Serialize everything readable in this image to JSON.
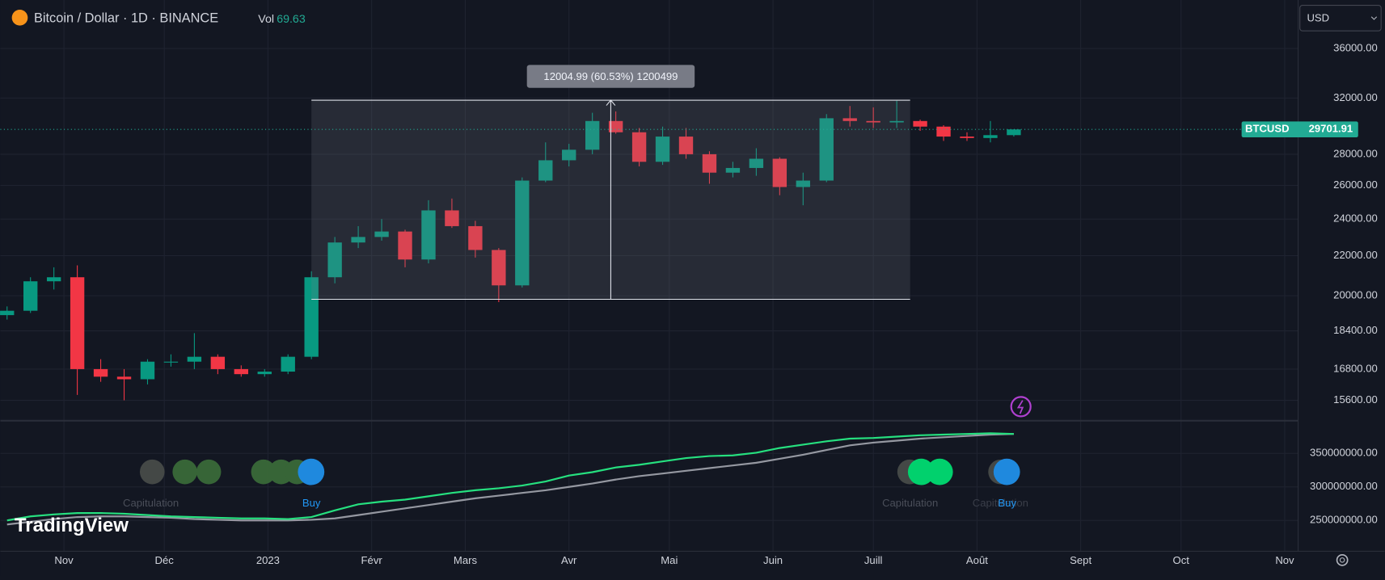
{
  "chart_data": [
    {
      "type": "candlestick",
      "title": "Bitcoin / Dollar · 1D · BINANCE",
      "volume_label": "Vol",
      "volume_value": 69.63,
      "log_scale": true,
      "grid": true,
      "up_color": "#089981",
      "down_color": "#f23645",
      "xlim": [
        -19,
        369
      ],
      "ylim": [
        14860,
        40400
      ],
      "yticks": [
        {
          "value": 36000,
          "label": "36000.00"
        },
        {
          "value": 32000,
          "label": "32000.00"
        },
        {
          "value": 28000,
          "label": "28000.00"
        },
        {
          "value": 26000,
          "label": "26000.00"
        },
        {
          "value": 24000,
          "label": "24000.00"
        },
        {
          "value": 22000,
          "label": "22000.00"
        },
        {
          "value": 20000,
          "label": "20000.00"
        },
        {
          "value": 18400,
          "label": "18400.00"
        },
        {
          "value": 16800,
          "label": "16800.00"
        },
        {
          "value": 15600,
          "label": "15600.00"
        }
      ],
      "x": [
        -17,
        -10,
        -3,
        4,
        11,
        18,
        25,
        32,
        39,
        46,
        53,
        60,
        67,
        74,
        81,
        88,
        95,
        102,
        109,
        116,
        123,
        130,
        137,
        144,
        151,
        158,
        165,
        172,
        179,
        186,
        193,
        200,
        207,
        214,
        221,
        228,
        235,
        242,
        249,
        256,
        263,
        270,
        277,
        284
      ],
      "open": [
        19100,
        19300,
        20700,
        20900,
        16800,
        16500,
        16400,
        17100,
        17100,
        17300,
        16800,
        16600,
        16700,
        17300,
        20900,
        22700,
        23000,
        23300,
        21800,
        24500,
        23600,
        22300,
        20500,
        26300,
        27600,
        28300,
        30300,
        29500,
        27500,
        29200,
        28000,
        26800,
        27100,
        27700,
        25900,
        26300,
        30500,
        30300,
        30200,
        30300,
        29900,
        29200,
        29100,
        29300
      ],
      "high": [
        19500,
        20900,
        21400,
        21500,
        17200,
        16800,
        17200,
        17400,
        18300,
        17400,
        16950,
        16800,
        17400,
        21200,
        23000,
        23600,
        24000,
        23400,
        25100,
        25200,
        23900,
        22400,
        26500,
        28800,
        28700,
        30900,
        31000,
        29800,
        29900,
        29800,
        28200,
        27500,
        28400,
        27800,
        26800,
        30800,
        31400,
        31300,
        31800,
        30400,
        30000,
        29500,
        30300,
        29700
      ],
      "low": [
        18900,
        19200,
        20300,
        15800,
        16300,
        15600,
        16200,
        16900,
        16800,
        16600,
        16500,
        16500,
        16600,
        17200,
        20600,
        22400,
        22800,
        21400,
        21600,
        23500,
        21900,
        19700,
        20400,
        26200,
        27200,
        28000,
        29400,
        27200,
        27300,
        27700,
        26100,
        26500,
        26600,
        25400,
        24800,
        26200,
        29900,
        29800,
        29800,
        29600,
        28900,
        28900,
        28800,
        29200
      ],
      "close": [
        19300,
        20700,
        20900,
        16800,
        16500,
        16400,
        17100,
        17100,
        17300,
        16800,
        16600,
        16700,
        17300,
        20900,
        22700,
        23000,
        23300,
        21800,
        24500,
        23600,
        22300,
        20500,
        26300,
        27600,
        28300,
        30300,
        29500,
        27500,
        29200,
        28000,
        26800,
        27100,
        27700,
        25900,
        26300,
        30500,
        30300,
        30200,
        30300,
        29900,
        29200,
        29100,
        29300,
        29700
      ],
      "last_price": {
        "label": "BTCUSD",
        "value": 29701.91,
        "color": "#22ab94"
      },
      "measure": {
        "label": "12004.99 (60.53%) 1200499",
        "x": [
          74,
          253
        ],
        "low": 19833,
        "high": 31838
      }
    },
    {
      "type": "line",
      "grid": true,
      "xlim": [
        -19,
        369
      ],
      "ylim": [
        204000000,
        398700000
      ],
      "yticks": [
        {
          "value": 350000000,
          "label": "350000000.00"
        },
        {
          "value": 300000000,
          "label": "300000000.00"
        },
        {
          "value": 250000000,
          "label": "250000000.00"
        }
      ],
      "xticks": [
        {
          "value": 0,
          "label": "Nov"
        },
        {
          "value": 30,
          "label": "Déc"
        },
        {
          "value": 61,
          "label": "2023"
        },
        {
          "value": 92,
          "label": "Févr"
        },
        {
          "value": 120,
          "label": "Mars"
        },
        {
          "value": 151,
          "label": "Avr"
        },
        {
          "value": 181,
          "label": "Mai"
        },
        {
          "value": 212,
          "label": "Juin"
        },
        {
          "value": 242,
          "label": "Juill"
        },
        {
          "value": 273,
          "label": "Août"
        },
        {
          "value": 304,
          "label": "Sept"
        },
        {
          "value": 334,
          "label": "Oct"
        },
        {
          "value": 365,
          "label": "Nov"
        }
      ],
      "x": [
        -17,
        -10,
        -3,
        4,
        11,
        18,
        25,
        32,
        39,
        46,
        53,
        60,
        67,
        74,
        81,
        88,
        95,
        102,
        109,
        116,
        123,
        130,
        137,
        144,
        151,
        158,
        165,
        172,
        179,
        186,
        193,
        200,
        207,
        214,
        221,
        228,
        235,
        242,
        249,
        256,
        263,
        270,
        277,
        284
      ],
      "series": [
        {
          "color": "#9598a1",
          "values": [
            244000000,
            248000000,
            252000000,
            255000000,
            256000000,
            256000000,
            255000000,
            254000000,
            252000000,
            251000000,
            250000000,
            250000000,
            250000000,
            251000000,
            253000000,
            258000000,
            263000000,
            268000000,
            273000000,
            278000000,
            283000000,
            287000000,
            291000000,
            295000000,
            300000000,
            305000000,
            311000000,
            316000000,
            320000000,
            324000000,
            328000000,
            332000000,
            336000000,
            342000000,
            348000000,
            355000000,
            362000000,
            366000000,
            369000000,
            372000000,
            374000000,
            376000000,
            378000000,
            379000000
          ]
        },
        {
          "color": "#26e07f",
          "values": [
            250000000,
            256000000,
            259000000,
            261000000,
            261000000,
            260000000,
            258000000,
            256000000,
            255000000,
            254000000,
            253000000,
            253000000,
            252000000,
            255000000,
            265000000,
            274000000,
            278000000,
            281000000,
            286000000,
            291000000,
            295000000,
            298000000,
            302000000,
            308000000,
            317000000,
            322000000,
            329000000,
            333000000,
            338000000,
            343000000,
            346000000,
            347000000,
            351000000,
            358000000,
            363000000,
            368000000,
            372000000,
            373000000,
            375000000,
            377000000,
            378000000,
            379000000,
            380000000,
            379000000
          ]
        }
      ],
      "annotations": [
        {
          "text": "Capitulation",
          "x": 26,
          "color": "#4a4e59"
        },
        {
          "text": "Buy",
          "x": 74,
          "color": "#2196f3"
        },
        {
          "text": "Capitulation",
          "x": 253,
          "color": "#4a4e59"
        },
        {
          "text": "Capitulation",
          "x": 280,
          "color": "#3a3e49"
        },
        {
          "text": "Buy",
          "x": 282,
          "color": "#2196f3"
        }
      ]
    }
  ],
  "currency": "USD",
  "logo": "TradingView"
}
